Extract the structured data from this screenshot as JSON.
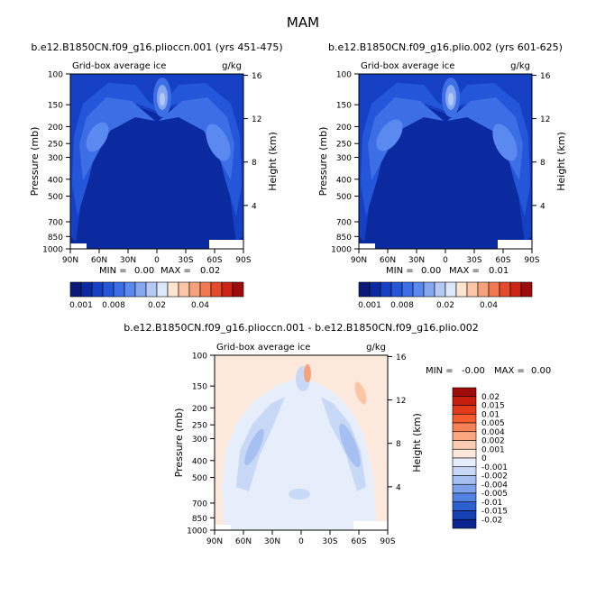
{
  "figure": {
    "title": "MAM"
  },
  "chart_data": [
    {
      "type": "heatmap",
      "title": "b.e12.B1850CN.f09_g16.plioccn.001 (yrs 451-475)",
      "subtitle_left": "Grid-box average ice",
      "subtitle_right": "g/kg",
      "xlabel": "",
      "ylabel": "Pressure (mb)",
      "y2label": "Height (km)",
      "xticks": [
        "90N",
        "60N",
        "30N",
        "0",
        "30S",
        "60S",
        "90S"
      ],
      "yticks": [
        "100",
        "150",
        "200",
        "250",
        "300",
        "400",
        "500",
        "700",
        "850",
        "1000"
      ],
      "y2ticks": [
        "16",
        "12",
        "8",
        "4"
      ],
      "stats": {
        "min_label": "MIN =",
        "min": "0.00",
        "max_label": "MAX =",
        "max": "0.02"
      },
      "colorbar": {
        "labels": [
          "0.001",
          "0.008",
          "0.02",
          "0.04"
        ],
        "colors": [
          "#0a1a78",
          "#0c2aa0",
          "#1540c4",
          "#2456da",
          "#3c6ee6",
          "#5a8af0",
          "#86a8f2",
          "#b4c9f4",
          "#dde9fa",
          "#fde5cf",
          "#fcc6a6",
          "#f8a27c",
          "#f27852",
          "#e64a2c",
          "#cc2414",
          "#9c0c0c"
        ]
      }
    },
    {
      "type": "heatmap",
      "title": "b.e12.B1850CN.f09_g16.plio.002 (yrs 601-625)",
      "subtitle_left": "Grid-box average ice",
      "subtitle_right": "g/kg",
      "xlabel": "",
      "ylabel": "Pressure (mb)",
      "y2label": "Height (km)",
      "xticks": [
        "90N",
        "60N",
        "30N",
        "0",
        "30S",
        "60S",
        "90S"
      ],
      "yticks": [
        "100",
        "150",
        "200",
        "250",
        "300",
        "400",
        "500",
        "700",
        "850",
        "1000"
      ],
      "y2ticks": [
        "16",
        "12",
        "8",
        "4"
      ],
      "stats": {
        "min_label": "MIN =",
        "min": "0.00",
        "max_label": "MAX =",
        "max": "0.01"
      },
      "colorbar": {
        "labels": [
          "0.001",
          "0.008",
          "0.02",
          "0.04"
        ],
        "colors": [
          "#0a1a78",
          "#0c2aa0",
          "#1540c4",
          "#2456da",
          "#3c6ee6",
          "#5a8af0",
          "#86a8f2",
          "#b4c9f4",
          "#dde9fa",
          "#fde5cf",
          "#fcc6a6",
          "#f8a27c",
          "#f27852",
          "#e64a2c",
          "#cc2414",
          "#9c0c0c"
        ]
      }
    },
    {
      "type": "heatmap",
      "title": "b.e12.B1850CN.f09_g16.plioccn.001 - b.e12.B1850CN.f09_g16.plio.002",
      "subtitle_left": "Grid-box average ice",
      "subtitle_right": "g/kg",
      "xlabel": "",
      "ylabel": "Pressure (mb)",
      "y2label": "Height (km)",
      "xticks": [
        "90N",
        "60N",
        "30N",
        "0",
        "30S",
        "60S",
        "90S"
      ],
      "yticks": [
        "100",
        "150",
        "200",
        "250",
        "300",
        "400",
        "500",
        "700",
        "850",
        "1000"
      ],
      "y2ticks": [
        "16",
        "12",
        "8",
        "4"
      ],
      "stats": {
        "min_label": "MIN =",
        "min": "-0.00",
        "max_label": "MAX =",
        "max": "0.00"
      },
      "colorbar": {
        "labels": [
          "0.02",
          "0.015",
          "0.01",
          "0.005",
          "0.004",
          "0.002",
          "0.001",
          "0",
          "-0.001",
          "-0.002",
          "-0.004",
          "-0.005",
          "-0.01",
          "-0.015",
          "-0.02"
        ],
        "colors": [
          "#a00c0c",
          "#c81e10",
          "#e43a1c",
          "#f45c2e",
          "#f88258",
          "#fba882",
          "#fdccb2",
          "#fde9dc",
          "#e6eefb",
          "#c8d9f7",
          "#a6c0f1",
          "#7ea2ea",
          "#5482e2",
          "#2e60d4",
          "#1640b4",
          "#0c2490"
        ]
      }
    }
  ]
}
